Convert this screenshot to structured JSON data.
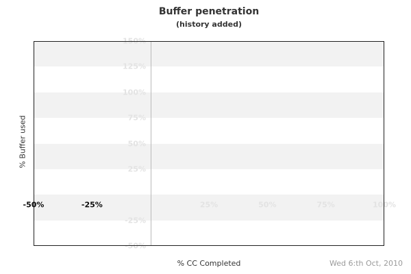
{
  "header": {
    "title": "Buffer penetration",
    "subtitle": "(history added)"
  },
  "y_axis": {
    "label": "% Buffer used",
    "ticks": [
      {
        "label": "150%",
        "value": 150
      },
      {
        "label": "125%",
        "value": 125
      },
      {
        "label": "100%",
        "value": 100
      },
      {
        "label": "75%",
        "value": 75
      },
      {
        "label": "50%",
        "value": 50
      },
      {
        "label": "25%",
        "value": 25
      },
      {
        "label": "-25%",
        "value": -25
      },
      {
        "label": "-50%",
        "value": -50
      }
    ]
  },
  "x_axis": {
    "label": "% CC Completed",
    "ticks": [
      {
        "label": "-50%",
        "value": -50,
        "dark": true
      },
      {
        "label": "-25%",
        "value": -25,
        "dark": true
      },
      {
        "label": "25%",
        "value": 25,
        "dark": false
      },
      {
        "label": "50%",
        "value": 50,
        "dark": false
      },
      {
        "label": "75%",
        "value": 75,
        "dark": false
      },
      {
        "label": "100%",
        "value": 100,
        "dark": false
      }
    ]
  },
  "footer": {
    "date": "Wed 6:th Oct, 2010"
  },
  "colors": {
    "stripe": "#f2f2f2",
    "faint_label": "#e3e3e3",
    "dark_label": "#0b0b0b",
    "zero_line": "#b9b9b9",
    "plot_border": "#1f1f1f",
    "title_text": "#333333",
    "date_text": "#9a9a9a"
  },
  "chart_data": {
    "type": "line",
    "title": "Buffer penetration",
    "subtitle": "(history added)",
    "xlabel": "% CC Completed",
    "ylabel": "% Buffer used",
    "xlim": [
      -50,
      100
    ],
    "ylim": [
      -50,
      150
    ],
    "x_tick_labels": [
      "-50%",
      "-25%",
      "25%",
      "50%",
      "75%",
      "100%"
    ],
    "y_tick_labels": [
      "150%",
      "125%",
      "100%",
      "75%",
      "50%",
      "25%",
      "-25%",
      "-50%"
    ],
    "grid": "alternating horizontal gray/white bands every 25% from 150% down to -50%; single vertical gridline at x=0",
    "legend": "none",
    "series": [],
    "note": "plot area is empty - no data points or lines are drawn",
    "date_annotation": "Wed 6:th Oct, 2010"
  }
}
